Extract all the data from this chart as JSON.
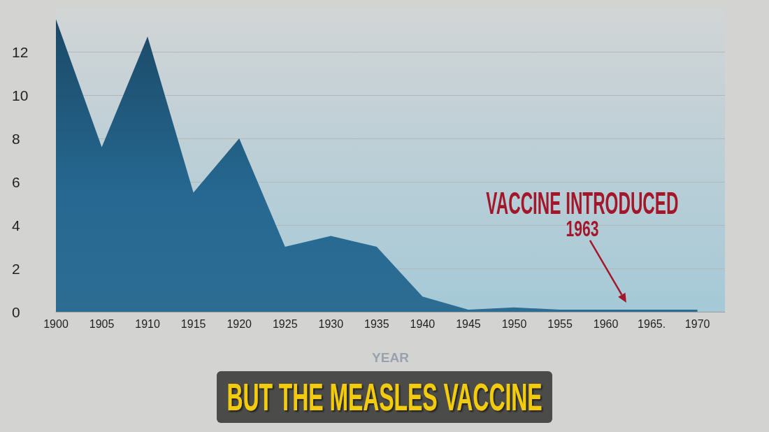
{
  "chart_data": {
    "type": "area",
    "x": [
      1900,
      1905,
      1910,
      1915,
      1920,
      1925,
      1930,
      1935,
      1940,
      1945,
      1950,
      1955,
      1960,
      1965,
      1970
    ],
    "values": [
      13.5,
      7.6,
      12.7,
      5.5,
      8.0,
      3.0,
      3.5,
      3.0,
      0.7,
      0.1,
      0.2,
      0.1,
      0.1,
      0.1,
      0.1
    ],
    "color": "#266891",
    "xlabel": "YEAR",
    "xlim": [
      1900,
      1973
    ],
    "xticks": [
      1900,
      1905,
      1910,
      1915,
      1920,
      1925,
      1930,
      1935,
      1940,
      1945,
      1950,
      1955,
      1960,
      {
        "value": 1965,
        "label": "1965."
      },
      1970
    ],
    "ylim": [
      0,
      14
    ],
    "yticks": [
      0,
      2,
      4,
      6,
      8,
      10,
      12
    ],
    "grid": "y",
    "annotations": [
      {
        "text": "VACCINE INTRODUCED",
        "x": 1963,
        "y": 0.1
      },
      "1963",
      "BUT THE MEASLES VACCINE"
    ]
  }
}
